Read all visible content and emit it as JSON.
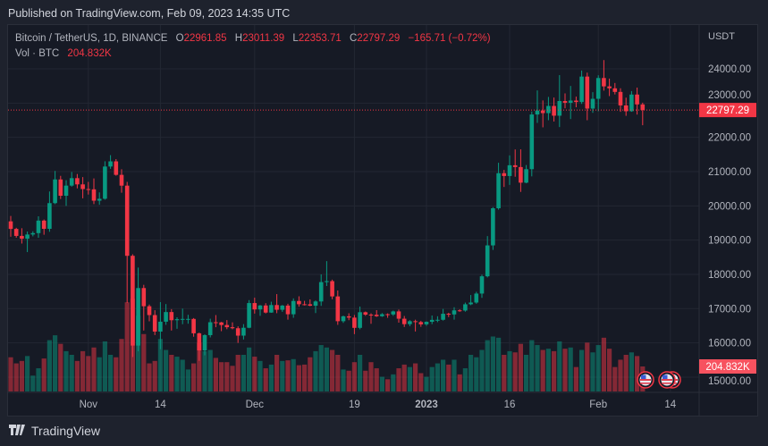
{
  "published": "Published on TradingView.com, Feb 09, 2023 14:35 UTC",
  "legend": {
    "symbol": "Bitcoin / TetherUS, 1D, BINANCE",
    "o_label": "O",
    "o": "22961.85",
    "h_label": "H",
    "h": "23011.39",
    "l_label": "L",
    "l": "22353.71",
    "c_label": "C",
    "c": "22797.29",
    "change": "−165.71 (−0.72%)",
    "vol_label": "Vol · BTC",
    "vol": "204.832K"
  },
  "footer": {
    "brand": "TradingView"
  },
  "colors": {
    "up": "#089981",
    "down": "#f23645",
    "bg": "#161a25",
    "grid": "#232733"
  },
  "chart_data": {
    "type": "candlestick",
    "title": "Bitcoin / TetherUS, 1D, BINANCE",
    "currency_label": "USDT",
    "ylim": [
      14700,
      24800
    ],
    "y_ticks": [
      "24000.00",
      "23000.00",
      "22000.00",
      "21000.00",
      "20000.00",
      "19000.00",
      "18000.00",
      "17000.00",
      "16000.00",
      "15000.00"
    ],
    "x_ticks": [
      {
        "label": "Nov",
        "index": 14
      },
      {
        "label": "14",
        "index": 27
      },
      {
        "label": "Dec",
        "index": 44
      },
      {
        "label": "19",
        "index": 62
      },
      {
        "label": "2023",
        "index": 75
      },
      {
        "label": "16",
        "index": 90
      },
      {
        "label": "Feb",
        "index": 106
      },
      {
        "label": "14",
        "index": 119
      }
    ],
    "last_price_label": "22797.29",
    "last_price": 22797.29,
    "last_volume_label": "204.832K",
    "last_volume_k": 204.832,
    "start_date": "2022-10-18",
    "candle_fields": [
      "open",
      "high",
      "low",
      "close",
      "volume_k"
    ],
    "candles": [
      [
        19548,
        19706,
        19100,
        19327,
        280
      ],
      [
        19327,
        19360,
        19070,
        19123,
        230
      ],
      [
        19123,
        19347,
        18900,
        19041,
        250
      ],
      [
        19041,
        19250,
        18650,
        19164,
        290
      ],
      [
        19164,
        19257,
        19110,
        19204,
        130
      ],
      [
        19204,
        19695,
        19070,
        19570,
        190
      ],
      [
        19570,
        19601,
        19157,
        19330,
        270
      ],
      [
        19330,
        20420,
        19243,
        20080,
        420
      ],
      [
        20080,
        21020,
        20050,
        20771,
        460
      ],
      [
        20771,
        20876,
        20200,
        20295,
        390
      ],
      [
        20295,
        20750,
        20000,
        20591,
        330
      ],
      [
        20591,
        20988,
        20560,
        20809,
        300
      ],
      [
        20809,
        20930,
        20510,
        20627,
        250
      ],
      [
        20627,
        20840,
        20220,
        20490,
        330
      ],
      [
        20490,
        20700,
        20330,
        20483,
        290
      ],
      [
        20483,
        20800,
        20050,
        20151,
        360
      ],
      [
        20151,
        20393,
        20031,
        20207,
        280
      ],
      [
        20207,
        21302,
        20180,
        21148,
        410
      ],
      [
        21148,
        21480,
        21080,
        21299,
        300
      ],
      [
        21299,
        21365,
        20880,
        20905,
        280
      ],
      [
        20905,
        21069,
        20384,
        20590,
        430
      ],
      [
        20590,
        20700,
        17166,
        18542,
        730
      ],
      [
        18542,
        18587,
        15588,
        15922,
        760
      ],
      [
        15922,
        18199,
        15754,
        17601,
        620
      ],
      [
        17601,
        17695,
        16361,
        17070,
        470
      ],
      [
        17070,
        17119,
        16631,
        16812,
        230
      ],
      [
        16812,
        16954,
        16229,
        16330,
        250
      ],
      [
        16330,
        17190,
        15815,
        16619,
        430
      ],
      [
        16619,
        17134,
        16527,
        16900,
        340
      ],
      [
        16900,
        16985,
        16361,
        16662,
        300
      ],
      [
        16662,
        16746,
        16410,
        16692,
        285
      ],
      [
        16692,
        17000,
        16546,
        16700,
        260
      ],
      [
        16700,
        16820,
        16560,
        16700,
        180
      ],
      [
        16700,
        16725,
        16180,
        16280,
        230
      ],
      [
        16280,
        16300,
        15476,
        15781,
        400
      ],
      [
        15781,
        16253,
        15640,
        16226,
        330
      ],
      [
        16226,
        16706,
        16160,
        16603,
        340
      ],
      [
        16603,
        16812,
        16458,
        16598,
        275
      ],
      [
        16598,
        16613,
        16342,
        16522,
        240
      ],
      [
        16522,
        16666,
        16400,
        16458,
        240
      ],
      [
        16458,
        16600,
        16399,
        16428,
        210
      ],
      [
        16428,
        16483,
        16000,
        16212,
        300
      ],
      [
        16212,
        16548,
        16100,
        16442,
        300
      ],
      [
        16442,
        17249,
        16428,
        17163,
        360
      ],
      [
        17163,
        17320,
        16855,
        16977,
        285
      ],
      [
        16977,
        17105,
        16790,
        17092,
        250
      ],
      [
        17092,
        17159,
        16860,
        16885,
        190
      ],
      [
        16885,
        17202,
        16878,
        17105,
        220
      ],
      [
        17105,
        17424,
        16867,
        16967,
        300
      ],
      [
        16967,
        17107,
        16906,
        17089,
        250
      ],
      [
        17089,
        17142,
        16678,
        16836,
        255
      ],
      [
        16836,
        17299,
        16733,
        17224,
        265
      ],
      [
        17224,
        17360,
        17058,
        17128,
        215
      ],
      [
        17128,
        17227,
        17092,
        17127,
        220
      ],
      [
        17127,
        17270,
        17071,
        17085,
        280
      ],
      [
        17085,
        17241,
        16871,
        17209,
        330
      ],
      [
        17209,
        18000,
        17080,
        17775,
        380
      ],
      [
        17775,
        18387,
        17660,
        17803,
        360
      ],
      [
        17803,
        17846,
        17275,
        17357,
        340
      ],
      [
        17357,
        17530,
        16527,
        16633,
        300
      ],
      [
        16633,
        16796,
        16584,
        16776,
        180
      ],
      [
        16776,
        16864,
        16663,
        16738,
        170
      ],
      [
        16738,
        16815,
        16256,
        16439,
        240
      ],
      [
        16439,
        17061,
        16397,
        16895,
        300
      ],
      [
        16895,
        16916,
        16790,
        16825,
        170
      ],
      [
        16825,
        16866,
        16559,
        16821,
        240
      ],
      [
        16821,
        16956,
        16758,
        16778,
        190
      ],
      [
        16778,
        16869,
        16760,
        16837,
        120
      ],
      [
        16837,
        16861,
        16733,
        16830,
        100
      ],
      [
        16830,
        16943,
        16789,
        16919,
        140
      ],
      [
        16919,
        16972,
        16592,
        16706,
        190
      ],
      [
        16706,
        16785,
        16465,
        16547,
        220
      ],
      [
        16547,
        16664,
        16488,
        16633,
        200
      ],
      [
        16633,
        16677,
        16333,
        16607,
        230
      ],
      [
        16607,
        16644,
        16470,
        16542,
        150
      ],
      [
        16542,
        16628,
        16499,
        16616,
        120
      ],
      [
        16616,
        16799,
        16548,
        16672,
        200
      ],
      [
        16672,
        16778,
        16605,
        16675,
        230
      ],
      [
        16675,
        16991,
        16651,
        16850,
        260
      ],
      [
        16850,
        16879,
        16753,
        16831,
        220
      ],
      [
        16831,
        17041,
        16679,
        16950,
        260
      ],
      [
        16950,
        16981,
        16908,
        16943,
        140
      ],
      [
        16943,
        17176,
        16911,
        17127,
        190
      ],
      [
        17127,
        17398,
        17101,
        17178,
        300
      ],
      [
        17178,
        17491,
        17143,
        17440,
        280
      ],
      [
        17440,
        17990,
        17315,
        17944,
        340
      ],
      [
        17944,
        19117,
        17911,
        18846,
        420
      ],
      [
        18846,
        19964,
        18714,
        19930,
        450
      ],
      [
        19930,
        21258,
        19889,
        20954,
        440
      ],
      [
        20954,
        21050,
        20551,
        20871,
        300
      ],
      [
        20871,
        21474,
        20611,
        21185,
        330
      ],
      [
        21185,
        21647,
        20850,
        21133,
        320
      ],
      [
        21133,
        21650,
        20407,
        20677,
        390
      ],
      [
        20677,
        21192,
        20659,
        21071,
        300
      ],
      [
        21071,
        22755,
        20861,
        22667,
        420
      ],
      [
        22667,
        23371,
        22422,
        22783,
        380
      ],
      [
        22783,
        23078,
        22292,
        22707,
        340
      ],
      [
        22707,
        23180,
        22500,
        22916,
        350
      ],
      [
        22916,
        23162,
        22462,
        22632,
        330
      ],
      [
        22632,
        23816,
        22300,
        23060,
        410
      ],
      [
        23060,
        23282,
        22850,
        23009,
        350
      ],
      [
        23009,
        23500,
        22534,
        23074,
        360
      ],
      [
        23074,
        23189,
        22878,
        23031,
        200
      ],
      [
        23031,
        23950,
        22976,
        23774,
        340
      ],
      [
        23774,
        23889,
        22500,
        22840,
        400
      ],
      [
        22840,
        23320,
        22715,
        23125,
        320
      ],
      [
        23125,
        23812,
        22760,
        23732,
        380
      ],
      [
        23732,
        24255,
        23363,
        23488,
        440
      ],
      [
        23488,
        23715,
        23204,
        23431,
        350
      ],
      [
        23431,
        23587,
        23253,
        23326,
        200
      ],
      [
        23326,
        23433,
        22745,
        22932,
        260
      ],
      [
        22932,
        23158,
        22628,
        22762,
        300
      ],
      [
        22762,
        23350,
        22745,
        23249,
        320
      ],
      [
        23249,
        23452,
        22665,
        22961,
        290
      ],
      [
        22961.85,
        23011.39,
        22353.71,
        22797.29,
        204.832
      ]
    ]
  }
}
